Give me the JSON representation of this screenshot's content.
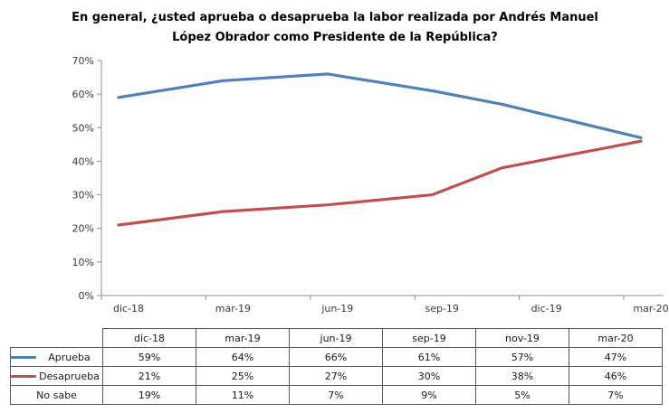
{
  "title": "En general, ¿usted aprueba o desaprueba la labor realizada por Andrés Manuel López Obrador como Presidente de la República?",
  "chart_data": {
    "type": "line",
    "x": [
      "dic-18",
      "mar-19",
      "jun-19",
      "sep-19",
      "nov-19",
      "mar-20"
    ],
    "x_month_offsets": [
      0,
      3,
      6,
      9,
      11,
      15
    ],
    "x_axis_tick_labels": [
      "dic-18",
      "mar-19",
      "jun-19",
      "sep-19",
      "dic-19",
      "mar-20"
    ],
    "series": [
      {
        "name": "Aprueba",
        "color": "#4F81BD",
        "values": [
          59,
          64,
          66,
          61,
          57,
          47
        ]
      },
      {
        "name": "Desaprueba",
        "color": "#C0504D",
        "values": [
          21,
          25,
          27,
          30,
          38,
          46
        ]
      }
    ],
    "title": "En general, ¿usted aprueba o desaprueba la labor realizada por Andrés Manuel López Obrador como Presidente de la República?",
    "xlabel": "",
    "ylabel": "",
    "ylim": [
      0,
      70
    ],
    "y_tick_step": 10,
    "y_tick_suffix": "%",
    "grid": false,
    "legend_position": "data-table-left",
    "axis_color": "#8c8c8c",
    "axis_text_color": "#3a3a3a"
  },
  "table": {
    "columns": [
      "",
      "dic-18",
      "mar-19",
      "jun-19",
      "sep-19",
      "nov-19",
      "mar-20"
    ],
    "rows": [
      {
        "label": "Aprueba",
        "key_color": "#4F81BD",
        "values": [
          "59%",
          "64%",
          "66%",
          "61%",
          "57%",
          "47%"
        ]
      },
      {
        "label": "Desaprueba",
        "key_color": "#C0504D",
        "values": [
          "21%",
          "25%",
          "27%",
          "30%",
          "38%",
          "46%"
        ]
      },
      {
        "label": "No sabe",
        "key_color": null,
        "values": [
          "19%",
          "11%",
          "7%",
          "9%",
          "5%",
          "7%"
        ]
      }
    ]
  }
}
